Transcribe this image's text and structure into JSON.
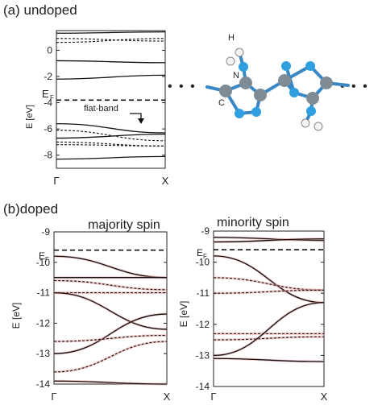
{
  "panel_a": {
    "label": "(a) undoped",
    "ylabel": "E [eV]",
    "fermi_label": "E",
    "fermi_sub": "F",
    "annotation": "flat-band",
    "xticks": [
      "Γ",
      "X"
    ],
    "yticks": [
      "0",
      "-2",
      "-4",
      "-6",
      "-8"
    ]
  },
  "panel_b": {
    "label": "(b)doped",
    "ylabel": "E [eV]",
    "fermi_label": "E",
    "fermi_sub": "F",
    "xticks": [
      "Γ",
      "X"
    ],
    "majority": {
      "title": "majority spin",
      "yticks": [
        "-9",
        "-10",
        "-11",
        "-12",
        "-13",
        "-14"
      ]
    },
    "minority": {
      "title": "minority spin",
      "yticks": [
        "-9",
        "-10",
        "-11",
        "-12",
        "-13",
        "-14"
      ]
    }
  },
  "molecule": {
    "atom_labels": [
      "H",
      "N",
      "C"
    ],
    "ellipsis": "• • •",
    "colors": {
      "carbon": "#7f8c96",
      "nitrogen": "#2f9fe0",
      "hydrogen": "#f4f4f4",
      "bond": "#3a87c5"
    }
  },
  "chart_data": [
    {
      "type": "line",
      "title": "(a) undoped",
      "ylabel": "E [eV]",
      "xlabel": "",
      "xtick_labels": [
        "Γ",
        "X"
      ],
      "x": [
        0,
        1
      ],
      "ylim": [
        -9,
        1.5
      ],
      "fermi_level": -3.8,
      "series": [
        {
          "style": "solid",
          "values": [
            1.3,
            1.4
          ]
        },
        {
          "style": "dashed",
          "values": [
            0.9,
            0.7
          ]
        },
        {
          "style": "dashed",
          "values": [
            0.6,
            0.9
          ]
        },
        {
          "style": "solid",
          "values": [
            -0.8,
            -0.95
          ]
        },
        {
          "style": "solid",
          "values": [
            -2.2,
            -1.9
          ]
        },
        {
          "style": "solid",
          "values": [
            -5.6,
            -6.3
          ]
        },
        {
          "style": "dashed",
          "values": [
            -6.1,
            -6.9
          ]
        },
        {
          "style": "solid",
          "values": [
            -6.7,
            -6.4
          ]
        },
        {
          "style": "dashed",
          "values": [
            -7.0,
            -7.3
          ]
        },
        {
          "style": "dashed",
          "values": [
            -7.2,
            -7.3
          ]
        },
        {
          "style": "solid",
          "values": [
            -8.3,
            -8.1
          ]
        }
      ]
    },
    {
      "type": "line",
      "title": "majority spin",
      "ylabel": "E [eV]",
      "xlabel": "",
      "xtick_labels": [
        "Γ",
        "X"
      ],
      "x": [
        0,
        1
      ],
      "ylim": [
        -14,
        -9
      ],
      "fermi_level": -9.6,
      "series": [
        {
          "style": "solid",
          "values": [
            -9.8,
            -10.5
          ]
        },
        {
          "style": "solid",
          "values": [
            -10.5,
            -10.5
          ]
        },
        {
          "style": "dashed",
          "values": [
            -10.6,
            -10.9
          ]
        },
        {
          "style": "dashed",
          "values": [
            -11.0,
            -11.0
          ]
        },
        {
          "style": "solid",
          "values": [
            -11.0,
            -12.2
          ]
        },
        {
          "style": "solid",
          "values": [
            -13.0,
            -11.7
          ]
        },
        {
          "style": "dashed",
          "values": [
            -12.6,
            -12.4
          ]
        },
        {
          "style": "dashed",
          "values": [
            -13.6,
            -12.6
          ]
        },
        {
          "style": "solid",
          "values": [
            -13.9,
            -14.0
          ]
        }
      ]
    },
    {
      "type": "line",
      "title": "minority spin",
      "ylabel": "E [eV]",
      "xlabel": "",
      "xtick_labels": [
        "Γ",
        "X"
      ],
      "x": [
        0,
        1
      ],
      "ylim": [
        -14,
        -9
      ],
      "fermi_level": -9.6,
      "series": [
        {
          "style": "solid",
          "values": [
            -9.2,
            -9.3
          ]
        },
        {
          "style": "solid",
          "values": [
            -9.35,
            -9.25
          ]
        },
        {
          "style": "solid",
          "values": [
            -9.8,
            -11.3
          ]
        },
        {
          "style": "dashed",
          "values": [
            -10.5,
            -10.9
          ]
        },
        {
          "style": "dashed",
          "values": [
            -11.0,
            -10.9
          ]
        },
        {
          "style": "dashed",
          "values": [
            -12.3,
            -12.3
          ]
        },
        {
          "style": "dashed",
          "values": [
            -12.5,
            -12.4
          ]
        },
        {
          "style": "solid",
          "values": [
            -13.0,
            -11.3
          ]
        },
        {
          "style": "solid",
          "values": [
            -13.1,
            -13.2
          ]
        }
      ]
    }
  ]
}
